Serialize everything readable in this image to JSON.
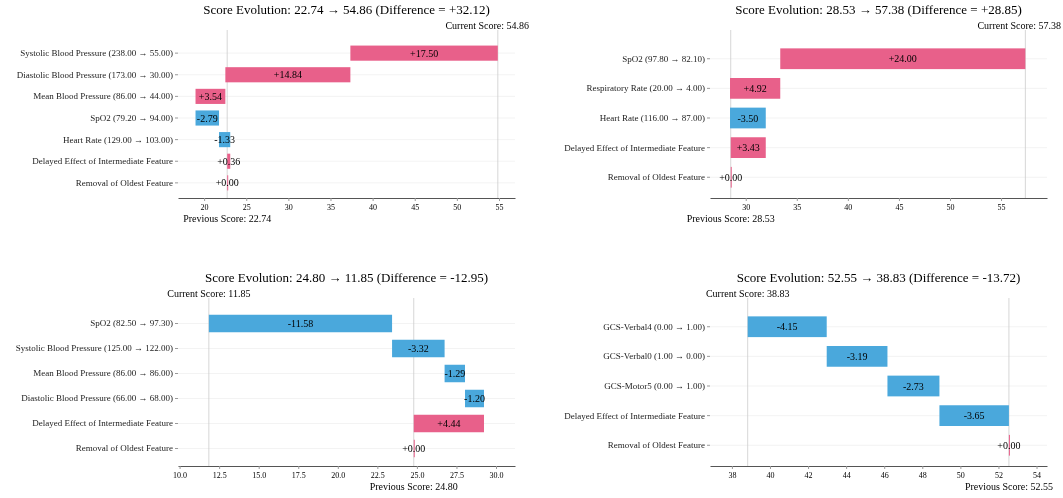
{
  "chart_data": [
    {
      "type": "bar",
      "orientation": "horizontal",
      "title": "Score Evolution: 22.74 → 54.86 (Difference = +32.12)",
      "categories": [
        "Systolic Blood Pressure (238.00 → 55.00)",
        "Diastolic Blood Pressure (173.00 → 30.00)",
        "Mean Blood Pressure (86.00 → 44.00)",
        "SpO2 (79.20 → 94.00)",
        "Heart Rate (129.00 → 103.00)",
        "Delayed Effect of Intermediate Feature",
        "Removal of Oldest Feature"
      ],
      "values": [
        17.5,
        14.84,
        3.54,
        -2.79,
        -1.33,
        0.36,
        0.0
      ],
      "base": [
        37.36,
        22.52,
        18.98,
        21.77,
        23.1,
        22.74,
        22.74
      ],
      "value_labels": [
        "+17.50",
        "+14.84",
        "+3.54",
        "-2.79",
        "-1.33",
        "+0.36",
        "+0.00"
      ],
      "colors": [
        "#e8608a",
        "#e8608a",
        "#e8608a",
        "#4aa8dc",
        "#4aa8dc",
        "#e8608a",
        "#e8608a"
      ],
      "xlim": [
        16.9,
        56.9
      ],
      "xticks": [
        20,
        25,
        30,
        35,
        40,
        45,
        50,
        55
      ],
      "grid": "y",
      "ref_lines": [
        {
          "axis": "x",
          "value": 22.74,
          "label": "Previous Score: 22.74",
          "color": "#cccccc"
        },
        {
          "axis": "x",
          "value": 54.86,
          "label": "Current Score: 54.86",
          "color": "#cccccc"
        }
      ]
    },
    {
      "type": "bar",
      "orientation": "horizontal",
      "title": "Score Evolution: 28.53 → 57.38 (Difference = +28.85)",
      "categories": [
        "SpO2 (97.80 → 82.10)",
        "Respiratory Rate (20.00 → 4.00)",
        "Heart Rate (116.00 → 87.00)",
        "Delayed Effect of Intermediate Feature",
        "Removal of Oldest Feature"
      ],
      "values": [
        24.0,
        4.92,
        -3.5,
        3.43,
        0.0
      ],
      "base": [
        33.38,
        28.46,
        31.96,
        28.53,
        28.53
      ],
      "value_labels": [
        "+24.00",
        "+4.92",
        "-3.50",
        "+3.43",
        "+0.00"
      ],
      "colors": [
        "#e8608a",
        "#e8608a",
        "#4aa8dc",
        "#e8608a",
        "#e8608a"
      ],
      "xlim": [
        26.5,
        59.5
      ],
      "xticks": [
        30,
        35,
        40,
        45,
        50,
        55
      ],
      "grid": "y",
      "ref_lines": [
        {
          "axis": "x",
          "value": 28.53,
          "label": "Previous Score: 28.53",
          "color": "#cccccc"
        },
        {
          "axis": "x",
          "value": 57.38,
          "label": "Current Score: 57.38",
          "color": "#cccccc"
        }
      ]
    },
    {
      "type": "bar",
      "orientation": "horizontal",
      "title": "Score Evolution: 24.80 → 11.85 (Difference = -12.95)",
      "categories": [
        "SpO2 (82.50 → 97.30)",
        "Systolic Blood Pressure (125.00 → 122.00)",
        "Mean Blood Pressure (86.00 → 86.00)",
        "Diastolic Blood Pressure (66.00 → 68.00)",
        "Delayed Effect of Intermediate Feature",
        "Removal of Oldest Feature"
      ],
      "values": [
        -11.58,
        -3.32,
        -1.29,
        -1.2,
        4.44,
        0.0
      ],
      "base": [
        23.43,
        26.75,
        28.04,
        29.24,
        24.8,
        24.8
      ],
      "value_labels": [
        "-11.58",
        "-3.32",
        "-1.29",
        "-1.20",
        "+4.44",
        "+0.00"
      ],
      "colors": [
        "#4aa8dc",
        "#4aa8dc",
        "#4aa8dc",
        "#4aa8dc",
        "#e8608a",
        "#e8608a"
      ],
      "xlim": [
        9.9,
        31.2
      ],
      "xticks": [
        {
          "value": 10,
          "label": "10.0"
        },
        {
          "value": 12.5,
          "label": "12.5"
        },
        {
          "value": 15,
          "label": "15.0"
        },
        {
          "value": 17.5,
          "label": "17.5"
        },
        {
          "value": 20,
          "label": "20.0"
        },
        {
          "value": 22.5,
          "label": "22.5"
        },
        {
          "value": 25,
          "label": "25.0"
        },
        {
          "value": 27.5,
          "label": "27.5"
        },
        {
          "value": 30,
          "label": "30.0"
        }
      ],
      "grid": "y",
      "ref_lines": [
        {
          "axis": "x",
          "value": 24.8,
          "label": "Previous Score: 24.80",
          "color": "#cccccc"
        },
        {
          "axis": "x",
          "value": 11.85,
          "label": "Current Score: 11.85",
          "color": "#cccccc"
        }
      ]
    },
    {
      "type": "bar",
      "orientation": "horizontal",
      "title": "Score Evolution: 52.55 → 38.83 (Difference = -13.72)",
      "categories": [
        "GCS-Verbal4 (0.00 → 1.00)",
        "GCS-Verbal0 (1.00 → 0.00)",
        "GCS-Motor5 (0.00 → 1.00)",
        "Delayed Effect of Intermediate Feature",
        "Removal of Oldest Feature"
      ],
      "values": [
        -4.15,
        -3.19,
        -2.73,
        -3.65,
        0.0
      ],
      "base": [
        42.98,
        46.17,
        48.9,
        52.55,
        52.55
      ],
      "value_labels": [
        "-4.15",
        "-3.19",
        "-2.73",
        "-3.65",
        "+0.00"
      ],
      "colors": [
        "#4aa8dc",
        "#4aa8dc",
        "#4aa8dc",
        "#4aa8dc",
        "#e8608a"
      ],
      "xlim": [
        36.85,
        54.55
      ],
      "xticks": [
        38,
        40,
        42,
        44,
        46,
        48,
        50,
        52,
        54
      ],
      "grid": "y",
      "ref_lines": [
        {
          "axis": "x",
          "value": 52.55,
          "label": "Previous Score: 52.55",
          "color": "#cccccc"
        },
        {
          "axis": "x",
          "value": 38.83,
          "label": "Current Score: 38.83",
          "color": "#cccccc"
        }
      ]
    }
  ]
}
